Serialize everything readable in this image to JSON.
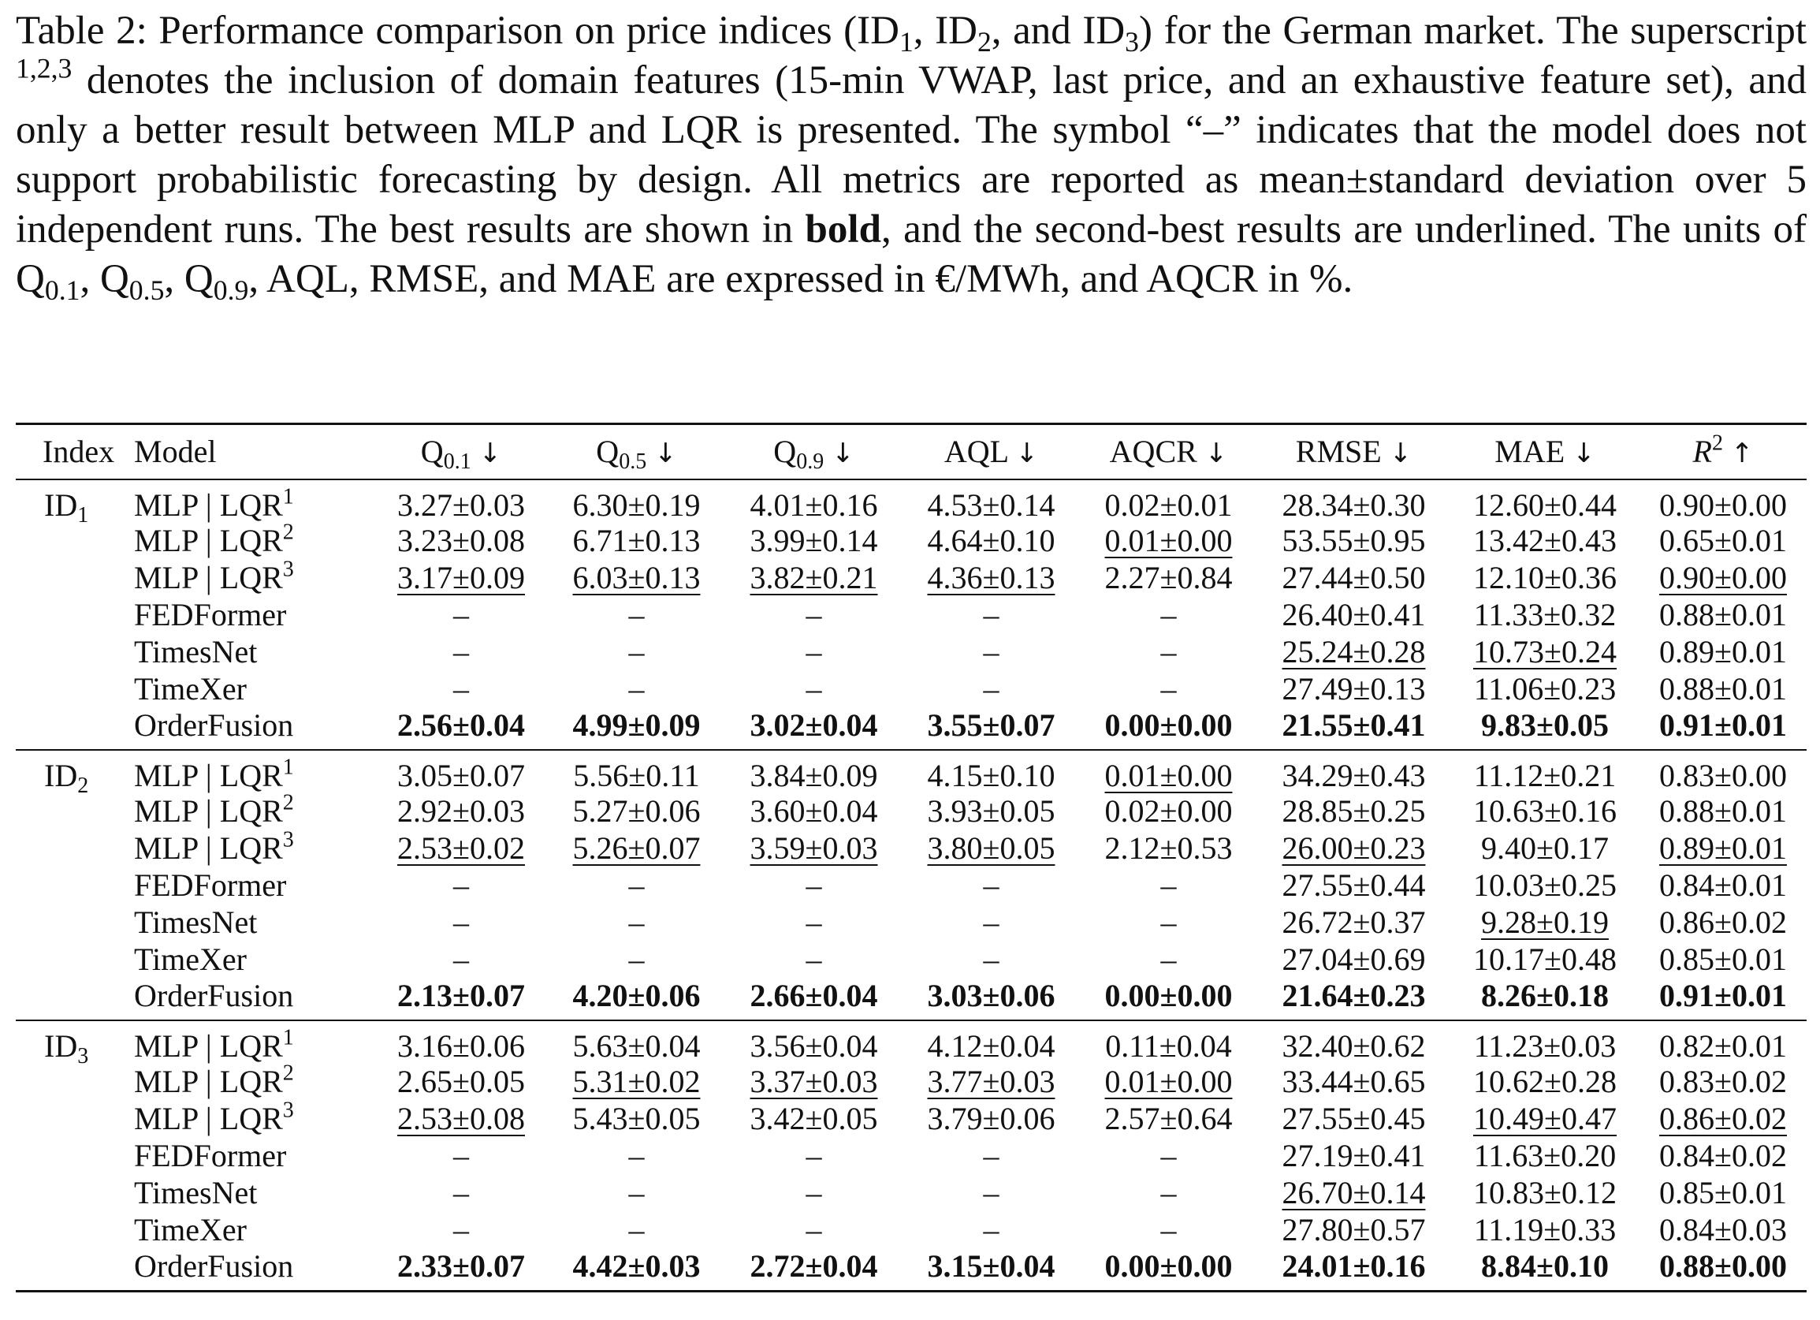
{
  "caption": {
    "label": "Table 2:",
    "s1a": " Performance comparison on price indices (ID",
    "s1sub1": "1",
    "s1b": ", ID",
    "s1sub2": "2",
    "s1c": ", and ID",
    "s1sub3": "3",
    "s1d": ") for the German market. The superscript ",
    "s1sup": "1,2,3",
    "s1e": " denotes the inclusion of domain features (15-min VWAP, last price, and an exhaustive feature set), and only a better result between MLP and LQR is presented. The symbol “–” indicates that the model does not support probabilistic forecasting by design. All metrics are reported as mean±standard deviation over 5 independent runs. The best results are shown in ",
    "bold_word": "bold",
    "s1f": ", and the second-best results are underlined. The units of Q",
    "q1sub": "0.1",
    "comma1": ", Q",
    "q5sub": "0.5",
    "comma2": ", Q",
    "q9sub": "0.9",
    "s1g": ", AQL, RMSE, and MAE are expressed in €/MWh, and AQCR in %."
  },
  "headers": {
    "index": "Index",
    "model": "Model",
    "q01": "Q",
    "q01_sub": "0.1",
    "q05": "Q",
    "q05_sub": "0.5",
    "q09": "Q",
    "q09_sub": "0.9",
    "aql": "AQL",
    "aqcr": "AQCR",
    "rmse": "RMSE",
    "mae": "MAE",
    "r2": "R",
    "r2_sup": "2",
    "down": "↓",
    "up": "↑"
  },
  "groups": [
    {
      "index": "ID",
      "index_sub": "1",
      "rows": [
        {
          "model": "MLP | LQR",
          "sup": "1",
          "cells": [
            [
              "3.27±0.03",
              ""
            ],
            [
              "6.30±0.19",
              ""
            ],
            [
              "4.01±0.16",
              ""
            ],
            [
              "4.53±0.14",
              ""
            ],
            [
              "0.02±0.01",
              ""
            ],
            [
              "28.34±0.30",
              ""
            ],
            [
              "12.60±0.44",
              ""
            ],
            [
              "0.90±0.00",
              ""
            ]
          ]
        },
        {
          "model": "MLP | LQR",
          "sup": "2",
          "cells": [
            [
              "3.23±0.08",
              ""
            ],
            [
              "6.71±0.13",
              ""
            ],
            [
              "3.99±0.14",
              ""
            ],
            [
              "4.64±0.10",
              ""
            ],
            [
              "0.01±0.00",
              "u"
            ],
            [
              "53.55±0.95",
              ""
            ],
            [
              "13.42±0.43",
              ""
            ],
            [
              "0.65±0.01",
              ""
            ]
          ]
        },
        {
          "model": "MLP | LQR",
          "sup": "3",
          "cells": [
            [
              "3.17±0.09",
              "u"
            ],
            [
              "6.03±0.13",
              "u"
            ],
            [
              "3.82±0.21",
              "u"
            ],
            [
              "4.36±0.13",
              "u"
            ],
            [
              "2.27±0.84",
              ""
            ],
            [
              "27.44±0.50",
              ""
            ],
            [
              "12.10±0.36",
              ""
            ],
            [
              "0.90±0.00",
              "u"
            ]
          ]
        },
        {
          "model": "FEDFormer",
          "sup": "",
          "cells": [
            [
              "–",
              ""
            ],
            [
              "–",
              ""
            ],
            [
              "–",
              ""
            ],
            [
              "–",
              ""
            ],
            [
              "–",
              ""
            ],
            [
              "26.40±0.41",
              ""
            ],
            [
              "11.33±0.32",
              ""
            ],
            [
              "0.88±0.01",
              ""
            ]
          ]
        },
        {
          "model": "TimesNet",
          "sup": "",
          "cells": [
            [
              "–",
              ""
            ],
            [
              "–",
              ""
            ],
            [
              "–",
              ""
            ],
            [
              "–",
              ""
            ],
            [
              "–",
              ""
            ],
            [
              "25.24±0.28",
              "u"
            ],
            [
              "10.73±0.24",
              "u"
            ],
            [
              "0.89±0.01",
              ""
            ]
          ]
        },
        {
          "model": "TimeXer",
          "sup": "",
          "cells": [
            [
              "–",
              ""
            ],
            [
              "–",
              ""
            ],
            [
              "–",
              ""
            ],
            [
              "–",
              ""
            ],
            [
              "–",
              ""
            ],
            [
              "27.49±0.13",
              ""
            ],
            [
              "11.06±0.23",
              ""
            ],
            [
              "0.88±0.01",
              ""
            ]
          ]
        },
        {
          "model": "OrderFusion",
          "sup": "",
          "cells": [
            [
              "2.56±0.04",
              "b"
            ],
            [
              "4.99±0.09",
              "b"
            ],
            [
              "3.02±0.04",
              "b"
            ],
            [
              "3.55±0.07",
              "b"
            ],
            [
              "0.00±0.00",
              "b"
            ],
            [
              "21.55±0.41",
              "b"
            ],
            [
              "9.83±0.05",
              "b"
            ],
            [
              "0.91±0.01",
              "b"
            ]
          ]
        }
      ]
    },
    {
      "index": "ID",
      "index_sub": "2",
      "rows": [
        {
          "model": "MLP | LQR",
          "sup": "1",
          "cells": [
            [
              "3.05±0.07",
              ""
            ],
            [
              "5.56±0.11",
              ""
            ],
            [
              "3.84±0.09",
              ""
            ],
            [
              "4.15±0.10",
              ""
            ],
            [
              "0.01±0.00",
              "u"
            ],
            [
              "34.29±0.43",
              ""
            ],
            [
              "11.12±0.21",
              ""
            ],
            [
              "0.83±0.00",
              ""
            ]
          ]
        },
        {
          "model": "MLP | LQR",
          "sup": "2",
          "cells": [
            [
              "2.92±0.03",
              ""
            ],
            [
              "5.27±0.06",
              ""
            ],
            [
              "3.60±0.04",
              ""
            ],
            [
              "3.93±0.05",
              ""
            ],
            [
              "0.02±0.00",
              ""
            ],
            [
              "28.85±0.25",
              ""
            ],
            [
              "10.63±0.16",
              ""
            ],
            [
              "0.88±0.01",
              ""
            ]
          ]
        },
        {
          "model": "MLP | LQR",
          "sup": "3",
          "cells": [
            [
              "2.53±0.02",
              "u"
            ],
            [
              "5.26±0.07",
              "u"
            ],
            [
              "3.59±0.03",
              "u"
            ],
            [
              "3.80±0.05",
              "u"
            ],
            [
              "2.12±0.53",
              ""
            ],
            [
              "26.00±0.23",
              "u"
            ],
            [
              "9.40±0.17",
              ""
            ],
            [
              "0.89±0.01",
              "u"
            ]
          ]
        },
        {
          "model": "FEDFormer",
          "sup": "",
          "cells": [
            [
              "–",
              ""
            ],
            [
              "–",
              ""
            ],
            [
              "–",
              ""
            ],
            [
              "–",
              ""
            ],
            [
              "–",
              ""
            ],
            [
              "27.55±0.44",
              ""
            ],
            [
              "10.03±0.25",
              ""
            ],
            [
              "0.84±0.01",
              ""
            ]
          ]
        },
        {
          "model": "TimesNet",
          "sup": "",
          "cells": [
            [
              "–",
              ""
            ],
            [
              "–",
              ""
            ],
            [
              "–",
              ""
            ],
            [
              "–",
              ""
            ],
            [
              "–",
              ""
            ],
            [
              "26.72±0.37",
              ""
            ],
            [
              "9.28±0.19",
              "u"
            ],
            [
              "0.86±0.02",
              ""
            ]
          ]
        },
        {
          "model": "TimeXer",
          "sup": "",
          "cells": [
            [
              "–",
              ""
            ],
            [
              "–",
              ""
            ],
            [
              "–",
              ""
            ],
            [
              "–",
              ""
            ],
            [
              "–",
              ""
            ],
            [
              "27.04±0.69",
              ""
            ],
            [
              "10.17±0.48",
              ""
            ],
            [
              "0.85±0.01",
              ""
            ]
          ]
        },
        {
          "model": "OrderFusion",
          "sup": "",
          "cells": [
            [
              "2.13±0.07",
              "b"
            ],
            [
              "4.20±0.06",
              "b"
            ],
            [
              "2.66±0.04",
              "b"
            ],
            [
              "3.03±0.06",
              "b"
            ],
            [
              "0.00±0.00",
              "b"
            ],
            [
              "21.64±0.23",
              "b"
            ],
            [
              "8.26±0.18",
              "b"
            ],
            [
              "0.91±0.01",
              "b"
            ]
          ]
        }
      ]
    },
    {
      "index": "ID",
      "index_sub": "3",
      "rows": [
        {
          "model": "MLP | LQR",
          "sup": "1",
          "cells": [
            [
              "3.16±0.06",
              ""
            ],
            [
              "5.63±0.04",
              ""
            ],
            [
              "3.56±0.04",
              ""
            ],
            [
              "4.12±0.04",
              ""
            ],
            [
              "0.11±0.04",
              ""
            ],
            [
              "32.40±0.62",
              ""
            ],
            [
              "11.23±0.03",
              ""
            ],
            [
              "0.82±0.01",
              ""
            ]
          ]
        },
        {
          "model": "MLP | LQR",
          "sup": "2",
          "cells": [
            [
              "2.65±0.05",
              ""
            ],
            [
              "5.31±0.02",
              "u"
            ],
            [
              "3.37±0.03",
              "u"
            ],
            [
              "3.77±0.03",
              "u"
            ],
            [
              "0.01±0.00",
              "u"
            ],
            [
              "33.44±0.65",
              ""
            ],
            [
              "10.62±0.28",
              ""
            ],
            [
              "0.83±0.02",
              ""
            ]
          ]
        },
        {
          "model": "MLP | LQR",
          "sup": "3",
          "cells": [
            [
              "2.53±0.08",
              "u"
            ],
            [
              "5.43±0.05",
              ""
            ],
            [
              "3.42±0.05",
              ""
            ],
            [
              "3.79±0.06",
              ""
            ],
            [
              "2.57±0.64",
              ""
            ],
            [
              "27.55±0.45",
              ""
            ],
            [
              "10.49±0.47",
              "u"
            ],
            [
              "0.86±0.02",
              "u"
            ]
          ]
        },
        {
          "model": "FEDFormer",
          "sup": "",
          "cells": [
            [
              "–",
              ""
            ],
            [
              "–",
              ""
            ],
            [
              "–",
              ""
            ],
            [
              "–",
              ""
            ],
            [
              "–",
              ""
            ],
            [
              "27.19±0.41",
              ""
            ],
            [
              "11.63±0.20",
              ""
            ],
            [
              "0.84±0.02",
              ""
            ]
          ]
        },
        {
          "model": "TimesNet",
          "sup": "",
          "cells": [
            [
              "–",
              ""
            ],
            [
              "–",
              ""
            ],
            [
              "–",
              ""
            ],
            [
              "–",
              ""
            ],
            [
              "–",
              ""
            ],
            [
              "26.70±0.14",
              "u"
            ],
            [
              "10.83±0.12",
              ""
            ],
            [
              "0.85±0.01",
              ""
            ]
          ]
        },
        {
          "model": "TimeXer",
          "sup": "",
          "cells": [
            [
              "–",
              ""
            ],
            [
              "–",
              ""
            ],
            [
              "–",
              ""
            ],
            [
              "–",
              ""
            ],
            [
              "–",
              ""
            ],
            [
              "27.80±0.57",
              ""
            ],
            [
              "11.19±0.33",
              ""
            ],
            [
              "0.84±0.03",
              ""
            ]
          ]
        },
        {
          "model": "OrderFusion",
          "sup": "",
          "cells": [
            [
              "2.33±0.07",
              "b"
            ],
            [
              "4.42±0.03",
              "b"
            ],
            [
              "2.72±0.04",
              "b"
            ],
            [
              "3.15±0.04",
              "b"
            ],
            [
              "0.00±0.00",
              "b"
            ],
            [
              "24.01±0.16",
              "b"
            ],
            [
              "8.84±0.10",
              "b"
            ],
            [
              "0.88±0.00",
              "b"
            ]
          ]
        }
      ]
    }
  ]
}
